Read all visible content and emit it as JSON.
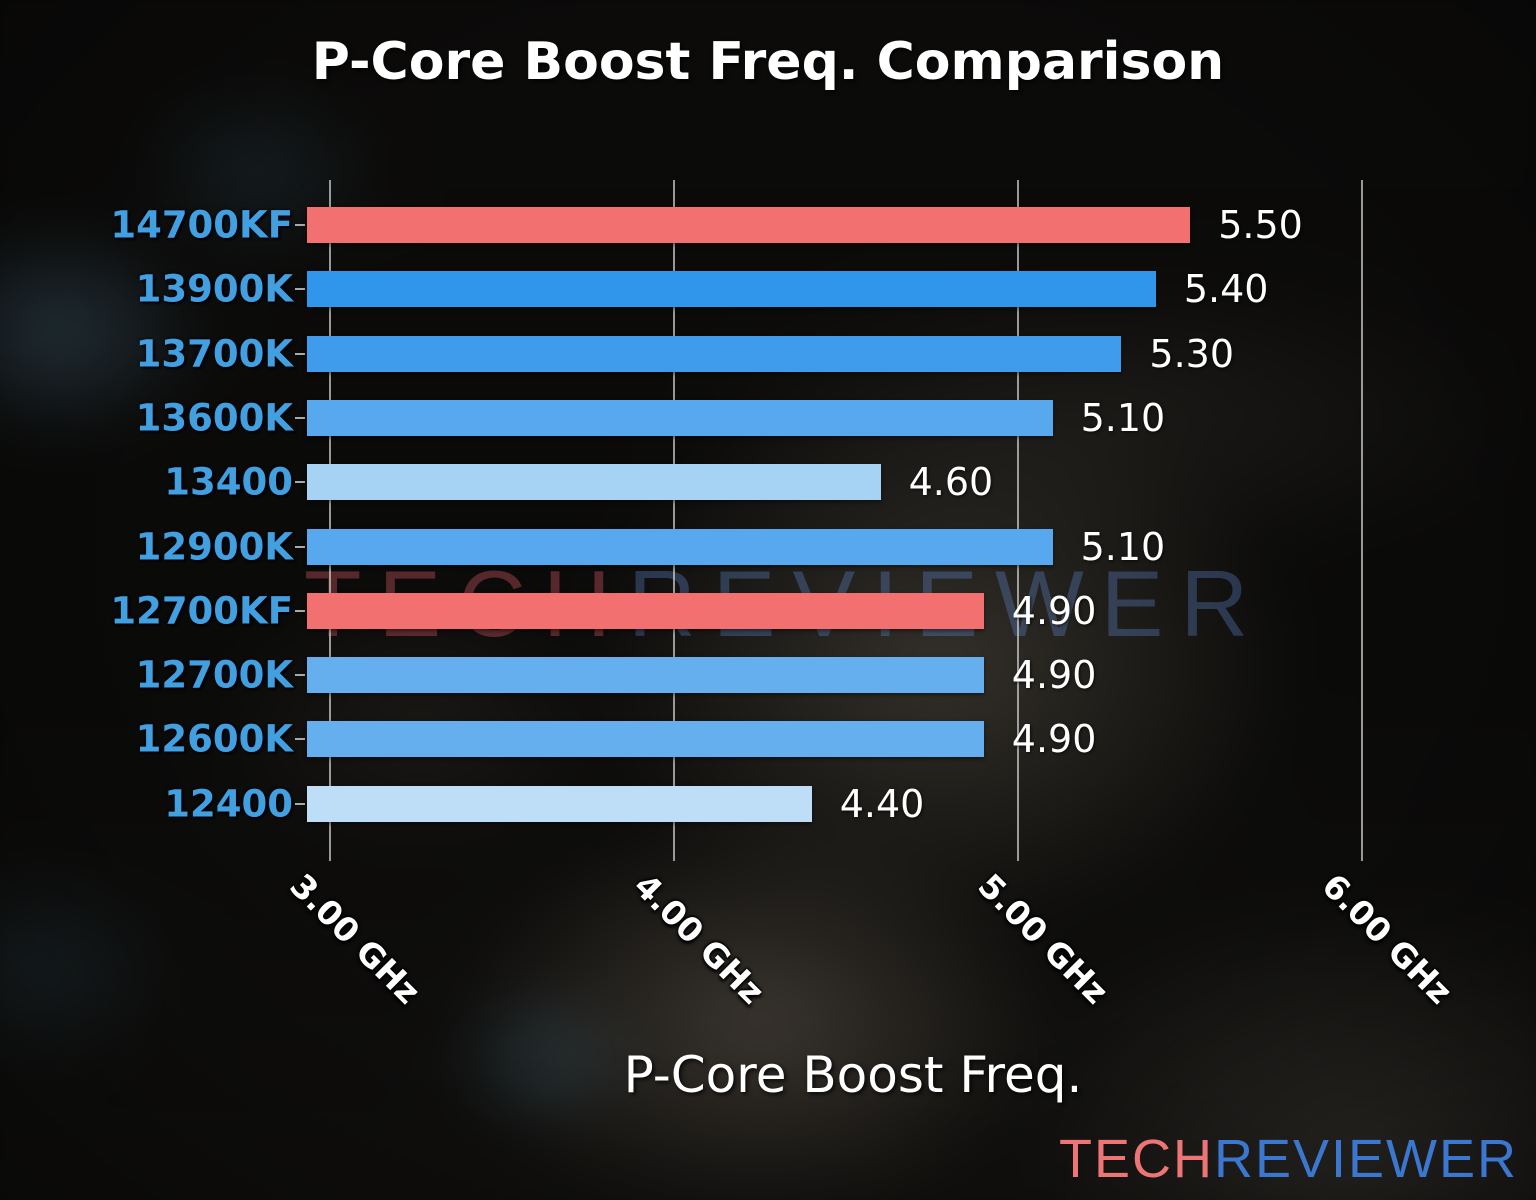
{
  "title": "P-Core Boost Freq. Comparison",
  "chart_data": {
    "type": "bar",
    "orientation": "horizontal",
    "title": "P-Core Boost Freq. Comparison",
    "xlabel": "P-Core Boost Freq.",
    "categories": [
      "14700KF",
      "13900K",
      "13700K",
      "13600K",
      "13400",
      "12900K",
      "12700KF",
      "12700K",
      "12600K",
      "12400"
    ],
    "values": [
      5.5,
      5.4,
      5.3,
      5.1,
      4.6,
      5.1,
      4.9,
      4.9,
      4.9,
      4.4
    ],
    "value_labels": [
      "5.50",
      "5.40",
      "5.30",
      "5.10",
      "4.60",
      "5.10",
      "4.90",
      "4.90",
      "4.90",
      "4.40"
    ],
    "bar_colors": [
      "#F37070",
      "#2F96EC",
      "#3F9BEB",
      "#57A8EE",
      "#A6D2F4",
      "#57A8EE",
      "#F37070",
      "#66AFEF",
      "#66AFEF",
      "#BEDDF7"
    ],
    "highlighted_categories": [
      "14700KF",
      "12700KF"
    ],
    "x_ticks": [
      "3.00 GHz",
      "4.00 GHz",
      "5.00 GHz",
      "6.00 GHz"
    ],
    "x_tick_values": [
      3,
      4,
      5,
      6
    ],
    "xlim": [
      2.933,
      6.377
    ],
    "grid": true,
    "unit": "GHz"
  },
  "watermark": {
    "part1": "TECH",
    "part2": "REVIEWER"
  },
  "logo": {
    "part1": "TECH",
    "part2": "REVIEWER"
  },
  "colors": {
    "bar_highlight": "#F37070",
    "y_label_blue": "#42A0E0",
    "value_text": "#FFFFFF",
    "grid_gray": "#C8C8C8",
    "logo_red": "#ED7575",
    "logo_blue": "#3B76CF"
  }
}
